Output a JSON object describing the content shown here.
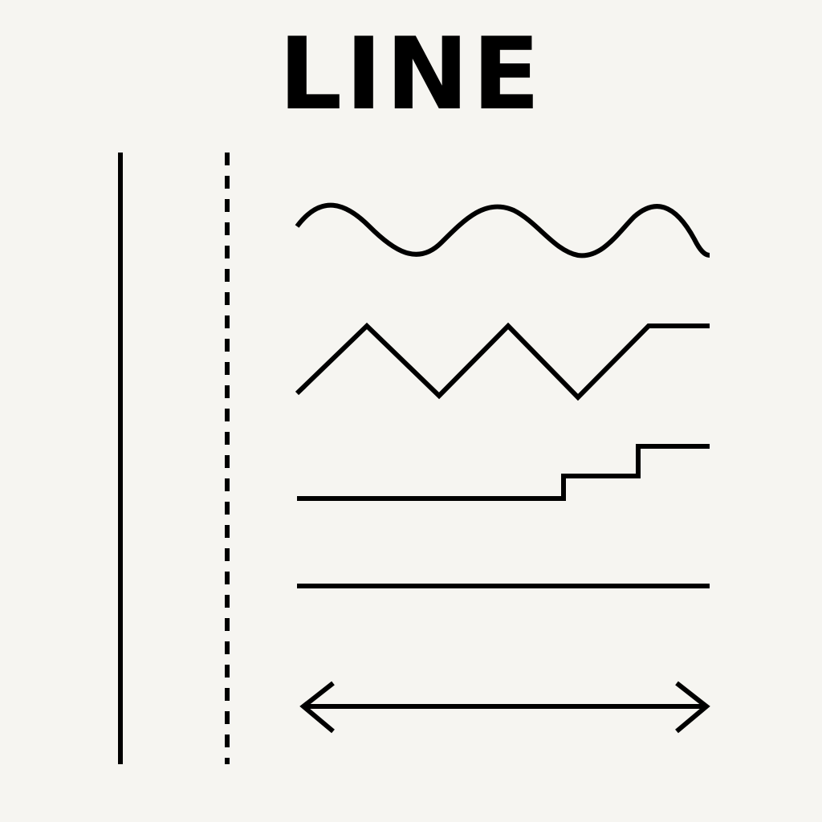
{
  "title": "LINE",
  "colors": {
    "background": "#F6F5F1",
    "ink": "#000000"
  },
  "line_styles": [
    "solid-vertical",
    "dashed-vertical",
    "wavy",
    "zigzag",
    "stepped",
    "straight",
    "double-headed-arrow"
  ]
}
